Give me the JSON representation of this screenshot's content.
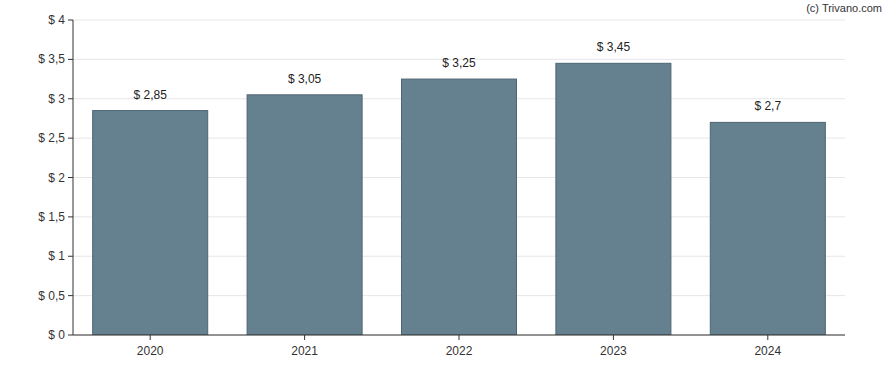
{
  "chart_data": {
    "type": "bar",
    "annotations": [
      "(c) Trivano.com"
    ],
    "categories": [
      "2020",
      "2021",
      "2022",
      "2023",
      "2024"
    ],
    "values": [
      2.85,
      3.05,
      3.25,
      3.45,
      2.7
    ],
    "value_labels": [
      "$ 2,85",
      "$ 3,05",
      "$ 3,25",
      "$ 3,45",
      "$ 2,7"
    ],
    "color": "#65808f",
    "ylim": [
      0,
      4
    ],
    "yticks": [
      {
        "value": 0,
        "label": "$ 0"
      },
      {
        "value": 0.5,
        "label": "$ 0,5"
      },
      {
        "value": 1,
        "label": "$ 1"
      },
      {
        "value": 1.5,
        "label": "$ 1,5"
      },
      {
        "value": 2,
        "label": "$ 2"
      },
      {
        "value": 2.5,
        "label": "$ 2,5"
      },
      {
        "value": 3,
        "label": "$ 3"
      },
      {
        "value": 3.5,
        "label": "$ 3,5"
      },
      {
        "value": 4,
        "label": "$ 4"
      }
    ],
    "grid": true,
    "data_labels": true
  }
}
